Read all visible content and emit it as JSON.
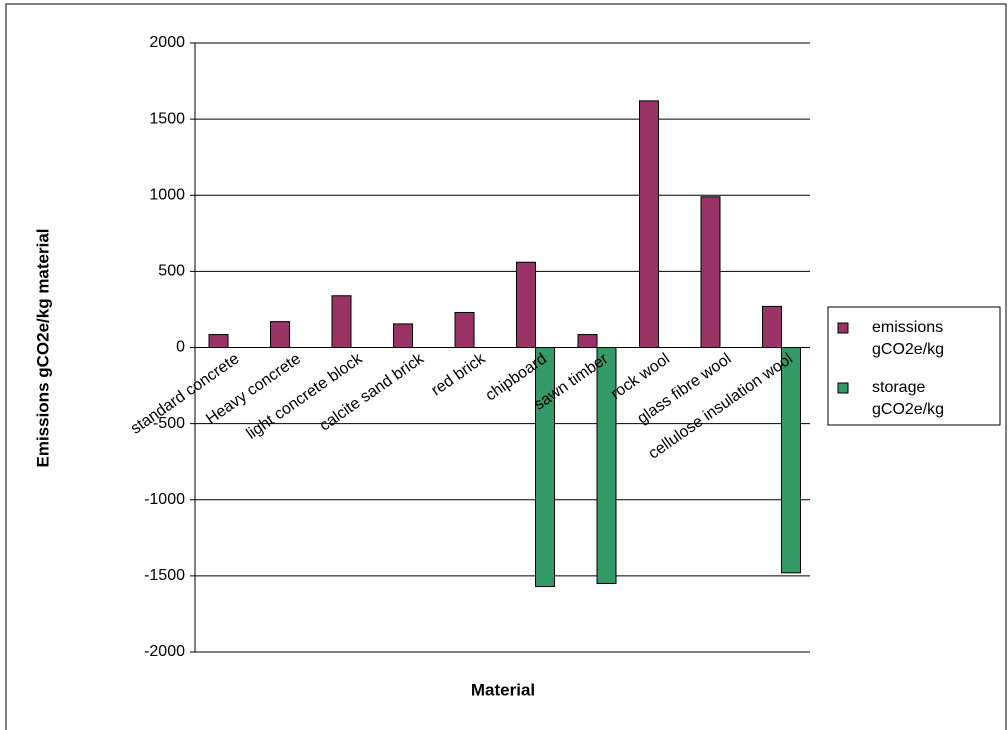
{
  "chart_data": {
    "type": "bar",
    "x_label": "Material",
    "y_label": "Emissions gCO2e/kg material",
    "categories": [
      "standard concrete",
      "Heavy concrete",
      "light concrete block",
      "calcite sand brick",
      "red brick",
      "chipboard",
      "sawn timber",
      "rock wool",
      "glass fibre wool",
      "cellulose insulation wool"
    ],
    "series": [
      {
        "name": "emissions gCO2e/kg",
        "color": "#993366",
        "values": [
          85,
          170,
          340,
          155,
          230,
          560,
          85,
          1620,
          990,
          270
        ]
      },
      {
        "name": "storage gCO2e/kg",
        "color": "#339966",
        "values": [
          null,
          null,
          null,
          null,
          null,
          -1570,
          -1550,
          null,
          null,
          -1480
        ]
      }
    ],
    "ylim": [
      -2000,
      2000
    ],
    "yticks": [
      -2000,
      -1500,
      -1000,
      -500,
      0,
      500,
      1000,
      1500,
      2000
    ],
    "grid": true,
    "legend": "right"
  }
}
